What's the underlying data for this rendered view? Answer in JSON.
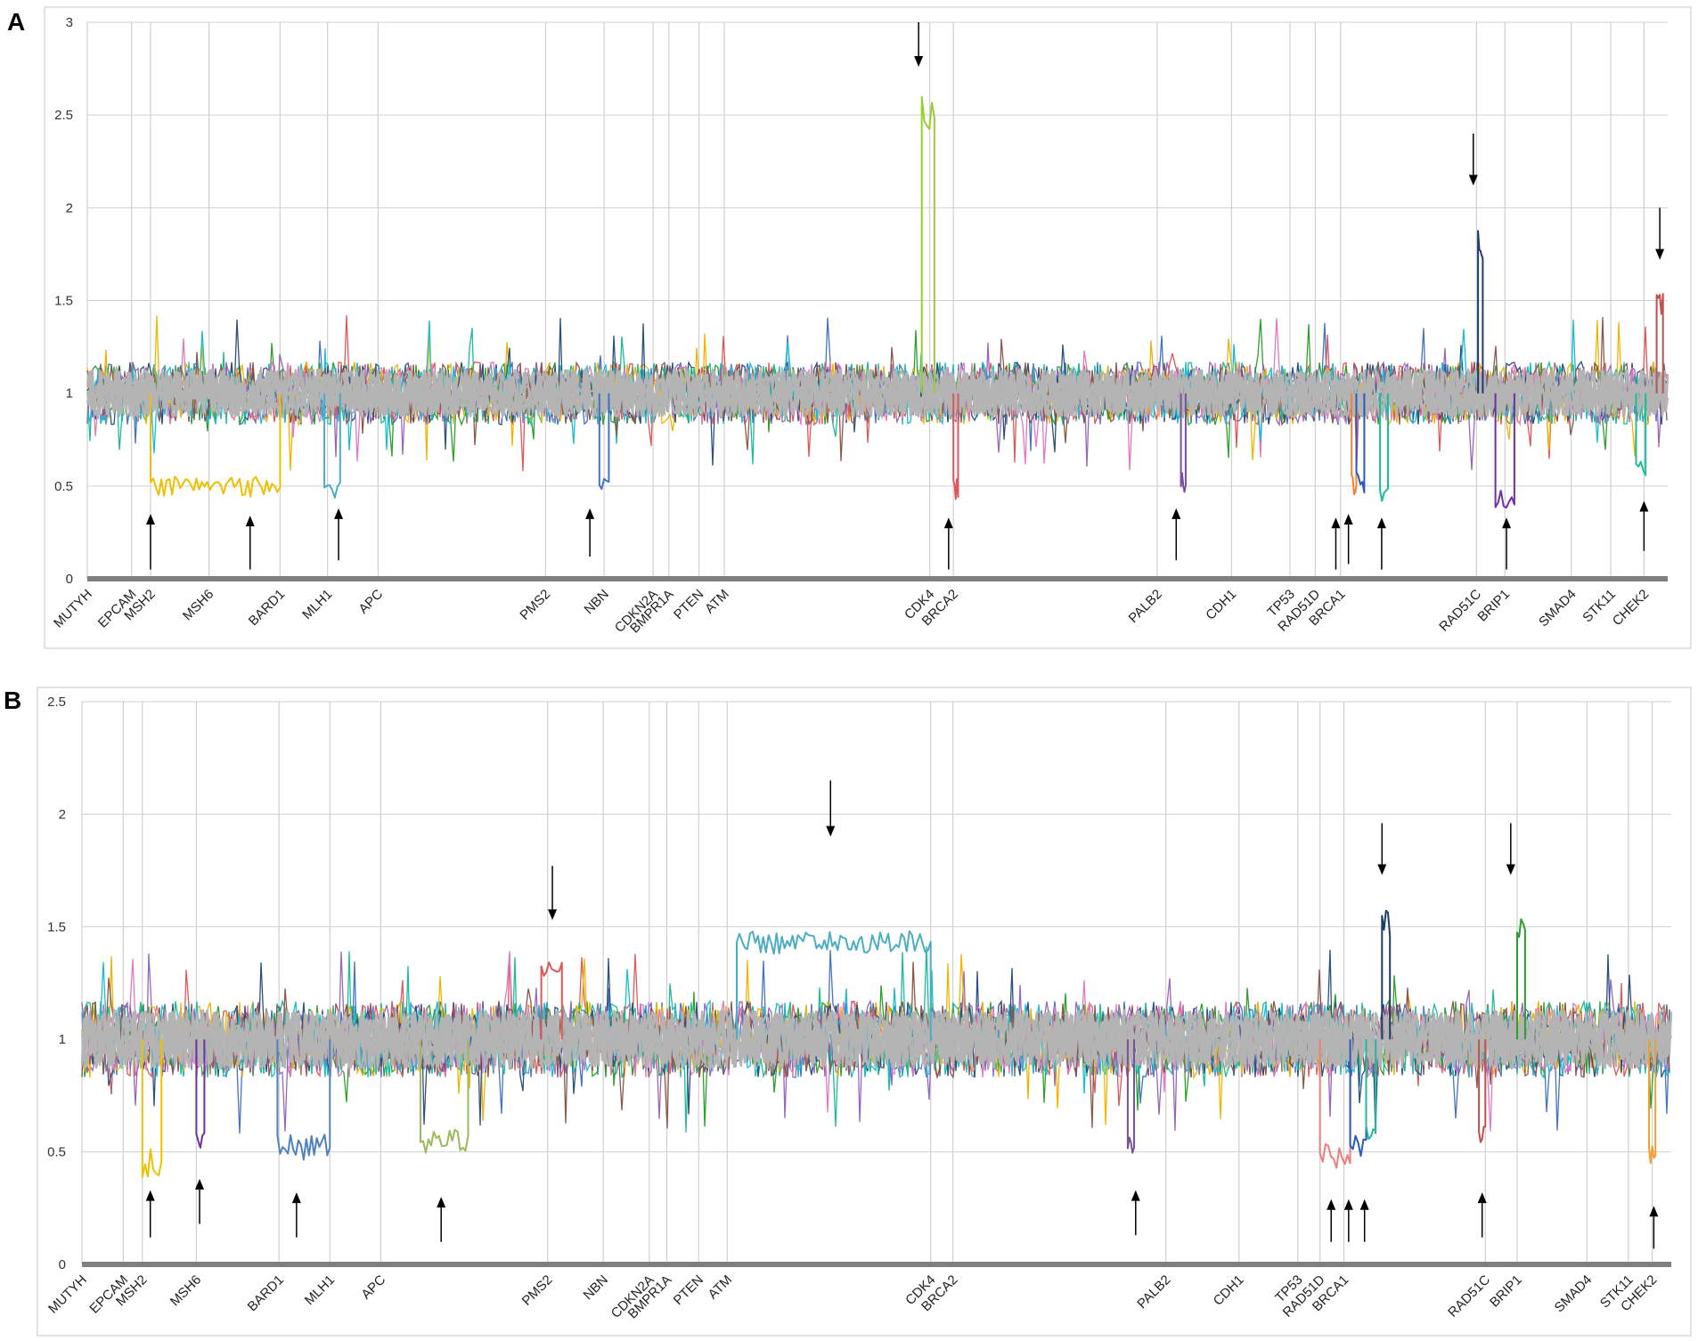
{
  "figure": {
    "colors": {
      "background": "#ffffff",
      "frame": "#d9d9d9",
      "grid": "#d0d0d0",
      "baseline": "#7f7f7f",
      "noise_gray": "#b4b4b4",
      "arrow": "#000000"
    },
    "noise_palette": [
      "#4472c4",
      "#e15759",
      "#2ca02c",
      "#1bbc9b",
      "#9467bd",
      "#f0b400",
      "#2b4f81",
      "#e377c2",
      "#17becf",
      "#8c564b"
    ]
  },
  "chart_data": [
    {
      "type": "line",
      "panel_label": "A",
      "ylim": [
        0,
        3
      ],
      "yticks": [
        0,
        0.5,
        1,
        1.5,
        2,
        2.5,
        3
      ],
      "xlim": [
        0,
        100
      ],
      "genes": [
        {
          "name": "MUTYH",
          "x": 0
        },
        {
          "name": "EPCAM",
          "x": 2.8
        },
        {
          "name": "MSH2",
          "x": 4.0
        },
        {
          "name": "MSH6",
          "x": 7.7
        },
        {
          "name": "BARD1",
          "x": 12.2
        },
        {
          "name": "MLH1",
          "x": 15.2
        },
        {
          "name": "APC",
          "x": 18.4
        },
        {
          "name": "PMS2",
          "x": 29.0
        },
        {
          "name": "NBN",
          "x": 32.7
        },
        {
          "name": "CDKN2A",
          "x": 35.8
        },
        {
          "name": "BMPR1A",
          "x": 36.8
        },
        {
          "name": "PTEN",
          "x": 38.7
        },
        {
          "name": "ATM",
          "x": 40.3
        },
        {
          "name": "CDK4",
          "x": 53.3
        },
        {
          "name": "BRCA2",
          "x": 54.8
        },
        {
          "name": "PALB2",
          "x": 67.7
        },
        {
          "name": "CDH1",
          "x": 72.4
        },
        {
          "name": "TP53",
          "x": 76.1
        },
        {
          "name": "RAD51D",
          "x": 77.7
        },
        {
          "name": "BRCA1",
          "x": 79.3
        },
        {
          "name": "RAD51C",
          "x": 87.9
        },
        {
          "name": "BRIP1",
          "x": 89.7
        },
        {
          "name": "SMAD4",
          "x": 93.9
        },
        {
          "name": "STK11",
          "x": 96.4
        },
        {
          "name": "CHEK2",
          "x": 98.5
        }
      ],
      "series": [
        {
          "color": "#f0c000",
          "x": [
            4.0,
            12.2
          ],
          "level": 0.5
        },
        {
          "color": "#4aacc6",
          "x": [
            15.0,
            16.0
          ],
          "level": 0.47
        },
        {
          "color": "#4472c4",
          "x": [
            32.4,
            33.0
          ],
          "level": 0.52
        },
        {
          "color": "#9acd32",
          "x": [
            52.8,
            53.6
          ],
          "level": 2.55
        },
        {
          "color": "#e15759",
          "x": [
            54.8,
            55.1
          ],
          "level": 0.48
        },
        {
          "color": "#7b4fa0",
          "x": [
            69.2,
            69.5
          ],
          "level": 0.52
        },
        {
          "color": "#f58231",
          "x": [
            80.0,
            80.3
          ],
          "level": 0.5
        },
        {
          "color": "#2b59c3",
          "x": [
            80.3,
            80.8
          ],
          "level": 0.52
        },
        {
          "color": "#1bbc9b",
          "x": [
            81.8,
            82.3
          ],
          "level": 0.47
        },
        {
          "color": "#1f3b6b",
          "x": [
            88.0,
            88.3
          ],
          "level": 1.82
        },
        {
          "color": "#7030a0",
          "x": [
            89.1,
            90.3
          ],
          "level": 0.43
        },
        {
          "color": "#1bbc9b",
          "x": [
            98.0,
            98.6
          ],
          "level": 0.6
        },
        {
          "color": "#c0504d",
          "x": [
            99.3,
            99.7
          ],
          "level": 1.48
        }
      ],
      "arrows": [
        {
          "x": 4.0,
          "dir": "up",
          "from": 0.05,
          "to": 0.35
        },
        {
          "x": 10.3,
          "dir": "up",
          "from": 0.05,
          "to": 0.34
        },
        {
          "x": 15.9,
          "dir": "up",
          "from": 0.1,
          "to": 0.38
        },
        {
          "x": 31.8,
          "dir": "up",
          "from": 0.12,
          "to": 0.38
        },
        {
          "x": 52.6,
          "dir": "down",
          "from": 3.0,
          "to": 2.76
        },
        {
          "x": 54.5,
          "dir": "up",
          "from": 0.05,
          "to": 0.33
        },
        {
          "x": 68.9,
          "dir": "up",
          "from": 0.1,
          "to": 0.38
        },
        {
          "x": 79.0,
          "dir": "up",
          "from": 0.05,
          "to": 0.33
        },
        {
          "x": 79.8,
          "dir": "up",
          "from": 0.08,
          "to": 0.35
        },
        {
          "x": 81.9,
          "dir": "up",
          "from": 0.05,
          "to": 0.33
        },
        {
          "x": 87.7,
          "dir": "down",
          "from": 2.4,
          "to": 2.12
        },
        {
          "x": 89.8,
          "dir": "up",
          "from": 0.05,
          "to": 0.33
        },
        {
          "x": 98.5,
          "dir": "up",
          "from": 0.15,
          "to": 0.42
        },
        {
          "x": 99.5,
          "dir": "down",
          "from": 2.0,
          "to": 1.72
        }
      ]
    },
    {
      "type": "line",
      "panel_label": "B",
      "ylim": [
        0,
        2.5
      ],
      "yticks": [
        0,
        0.5,
        1,
        1.5,
        2,
        2.5
      ],
      "xlim": [
        0,
        100
      ],
      "genes": [
        {
          "name": "MUTYH",
          "x": 0
        },
        {
          "name": "EPCAM",
          "x": 2.6
        },
        {
          "name": "MSH2",
          "x": 3.8
        },
        {
          "name": "MSH6",
          "x": 7.2
        },
        {
          "name": "BARD1",
          "x": 12.4
        },
        {
          "name": "MLH1",
          "x": 15.6
        },
        {
          "name": "APC",
          "x": 18.8
        },
        {
          "name": "PMS2",
          "x": 29.3
        },
        {
          "name": "NBN",
          "x": 32.8
        },
        {
          "name": "CDKN2A",
          "x": 35.7
        },
        {
          "name": "BMPR1A",
          "x": 36.8
        },
        {
          "name": "PTEN",
          "x": 38.8
        },
        {
          "name": "ATM",
          "x": 40.6
        },
        {
          "name": "CDK4",
          "x": 53.4
        },
        {
          "name": "BRCA2",
          "x": 54.8
        },
        {
          "name": "PALB2",
          "x": 68.2
        },
        {
          "name": "CDH1",
          "x": 72.8
        },
        {
          "name": "TP53",
          "x": 76.5
        },
        {
          "name": "RAD51D",
          "x": 77.9
        },
        {
          "name": "BRCA1",
          "x": 79.4
        },
        {
          "name": "RAD51C",
          "x": 88.3
        },
        {
          "name": "BRIP1",
          "x": 90.3
        },
        {
          "name": "SMAD4",
          "x": 94.7
        },
        {
          "name": "STK11",
          "x": 97.3
        },
        {
          "name": "CHEK2",
          "x": 98.8
        }
      ],
      "series": [
        {
          "color": "#f0c000",
          "x": [
            3.8,
            5.0
          ],
          "level": 0.45
        },
        {
          "color": "#7030a0",
          "x": [
            7.2,
            7.7
          ],
          "level": 0.55
        },
        {
          "color": "#4f81bd",
          "x": [
            12.3,
            15.6
          ],
          "level": 0.52
        },
        {
          "color": "#9bbb59",
          "x": [
            21.3,
            24.3
          ],
          "level": 0.55
        },
        {
          "color": "#e15759",
          "x": [
            28.9,
            30.2
          ],
          "level": 1.32
        },
        {
          "color": "#4bacc6",
          "x": [
            41.2,
            53.4
          ],
          "level": 1.43
        },
        {
          "color": "#7b4fa0",
          "x": [
            65.8,
            66.2
          ],
          "level": 0.55
        },
        {
          "color": "#f07c7c",
          "x": [
            77.9,
            79.8
          ],
          "level": 0.48
        },
        {
          "color": "#2b59c3",
          "x": [
            79.8,
            80.8
          ],
          "level": 0.52
        },
        {
          "color": "#1bbc9b",
          "x": [
            80.8,
            81.4
          ],
          "level": 0.6
        },
        {
          "color": "#1f3b6b",
          "x": [
            81.8,
            82.3
          ],
          "level": 1.52
        },
        {
          "color": "#c0504d",
          "x": [
            87.9,
            88.3
          ],
          "level": 0.58
        },
        {
          "color": "#2ca02c",
          "x": [
            90.3,
            90.8
          ],
          "level": 1.5
        },
        {
          "color": "#f0a030",
          "x": [
            98.6,
            99.0
          ],
          "level": 0.5
        }
      ],
      "arrows": [
        {
          "x": 4.3,
          "dir": "up",
          "from": 0.12,
          "to": 0.33
        },
        {
          "x": 7.4,
          "dir": "up",
          "from": 0.18,
          "to": 0.38
        },
        {
          "x": 13.5,
          "dir": "up",
          "from": 0.12,
          "to": 0.32
        },
        {
          "x": 22.6,
          "dir": "up",
          "from": 0.1,
          "to": 0.3
        },
        {
          "x": 29.6,
          "dir": "down",
          "from": 1.77,
          "to": 1.53
        },
        {
          "x": 47.1,
          "dir": "down",
          "from": 2.15,
          "to": 1.9
        },
        {
          "x": 66.3,
          "dir": "up",
          "from": 0.13,
          "to": 0.33
        },
        {
          "x": 78.6,
          "dir": "up",
          "from": 0.1,
          "to": 0.29
        },
        {
          "x": 79.7,
          "dir": "up",
          "from": 0.1,
          "to": 0.29
        },
        {
          "x": 80.7,
          "dir": "up",
          "from": 0.1,
          "to": 0.29
        },
        {
          "x": 81.8,
          "dir": "down",
          "from": 1.96,
          "to": 1.73
        },
        {
          "x": 88.1,
          "dir": "up",
          "from": 0.12,
          "to": 0.32
        },
        {
          "x": 89.9,
          "dir": "down",
          "from": 1.96,
          "to": 1.73
        },
        {
          "x": 98.9,
          "dir": "up",
          "from": 0.07,
          "to": 0.26
        }
      ]
    }
  ]
}
